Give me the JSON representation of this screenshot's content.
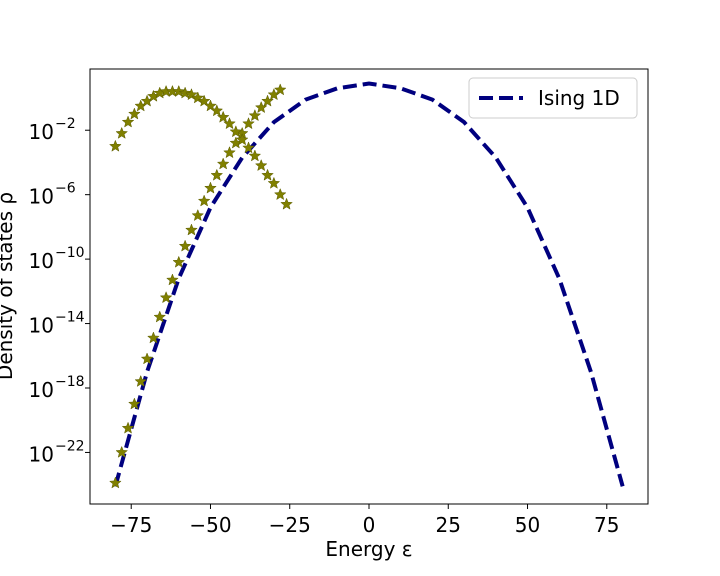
{
  "chart_data": {
    "type": "line",
    "title": "",
    "xlabel": "Energy ε",
    "ylabel": "Density of states ρ",
    "xlim": [
      -88,
      88
    ],
    "y_scale": "log",
    "ylim_log10": [
      -25.2,
      1.8
    ],
    "x_ticks": [
      -75,
      -50,
      -25,
      0,
      25,
      50,
      75
    ],
    "x_tick_labels": [
      "−75",
      "−50",
      "−25",
      "0",
      "25",
      "50",
      "75"
    ],
    "y_ticks_log10": [
      -22,
      -18,
      -14,
      -10,
      -6,
      -2
    ],
    "y_tick_labels": [
      "10",
      "10",
      "10",
      "10",
      "10",
      "10"
    ],
    "y_tick_exponents": [
      "−22",
      "−18",
      "−14",
      "−10",
      "−6",
      "−2"
    ],
    "grid": false,
    "legend_position": "top-right",
    "series": [
      {
        "name": "Ising 1D",
        "style": "dashed-line",
        "color": "#00007f",
        "n_spins": 80,
        "x_range": [
          -80,
          80
        ],
        "curve_log10_points": [
          [
            -80,
            -24.1
          ],
          [
            -70,
            -17.0
          ],
          [
            -60,
            -11.2
          ],
          [
            -50,
            -6.8
          ],
          [
            -40,
            -3.7
          ],
          [
            -30,
            -1.5
          ],
          [
            -20,
            -0.1
          ],
          [
            -10,
            0.6
          ],
          [
            0,
            0.9
          ],
          [
            10,
            0.6
          ],
          [
            20,
            -0.1
          ],
          [
            30,
            -1.5
          ],
          [
            40,
            -3.7
          ],
          [
            50,
            -6.8
          ],
          [
            60,
            -11.2
          ],
          [
            70,
            -17.0
          ],
          [
            80,
            -24.1
          ]
        ]
      },
      {
        "style": "star-markers",
        "color": "#808000",
        "points_log10": [
          [
            -80,
            -23.9
          ],
          [
            -78,
            -22.0
          ],
          [
            -76,
            -20.5
          ],
          [
            -74,
            -19.0
          ],
          [
            -72,
            -17.6
          ],
          [
            -70,
            -16.2
          ],
          [
            -68,
            -14.9
          ],
          [
            -66,
            -13.6
          ],
          [
            -64,
            -12.4
          ],
          [
            -62,
            -11.3
          ],
          [
            -60,
            -10.2
          ],
          [
            -58,
            -9.2
          ],
          [
            -56,
            -8.2
          ],
          [
            -54,
            -7.3
          ],
          [
            -52,
            -6.4
          ],
          [
            -50,
            -5.6
          ],
          [
            -48,
            -4.8
          ],
          [
            -46,
            -4.1
          ],
          [
            -44,
            -3.4
          ],
          [
            -42,
            -2.8
          ],
          [
            -40,
            -2.2
          ],
          [
            -38,
            -1.6
          ],
          [
            -36,
            -1.1
          ],
          [
            -34,
            -0.6
          ],
          [
            -32,
            -0.2
          ],
          [
            -30,
            0.2
          ],
          [
            -28,
            0.5
          ],
          [
            -80,
            -3.0
          ],
          [
            -78,
            -2.2
          ],
          [
            -76,
            -1.5
          ],
          [
            -74,
            -1.0
          ],
          [
            -72,
            -0.5
          ],
          [
            -70,
            -0.2
          ],
          [
            -68,
            0.1
          ],
          [
            -66,
            0.3
          ],
          [
            -64,
            0.4
          ],
          [
            -62,
            0.4
          ],
          [
            -60,
            0.4
          ],
          [
            -58,
            0.3
          ],
          [
            -56,
            0.2
          ],
          [
            -54,
            0.0
          ],
          [
            -52,
            -0.2
          ],
          [
            -50,
            -0.5
          ],
          [
            -48,
            -0.8
          ],
          [
            -46,
            -1.2
          ],
          [
            -44,
            -1.6
          ],
          [
            -42,
            -2.1
          ],
          [
            -40,
            -2.6
          ],
          [
            -38,
            -3.1
          ],
          [
            -36,
            -3.6
          ],
          [
            -34,
            -4.2
          ],
          [
            -32,
            -4.8
          ],
          [
            -30,
            -5.3
          ],
          [
            -28,
            -6.0
          ],
          [
            -26,
            -6.6
          ]
        ]
      }
    ]
  }
}
